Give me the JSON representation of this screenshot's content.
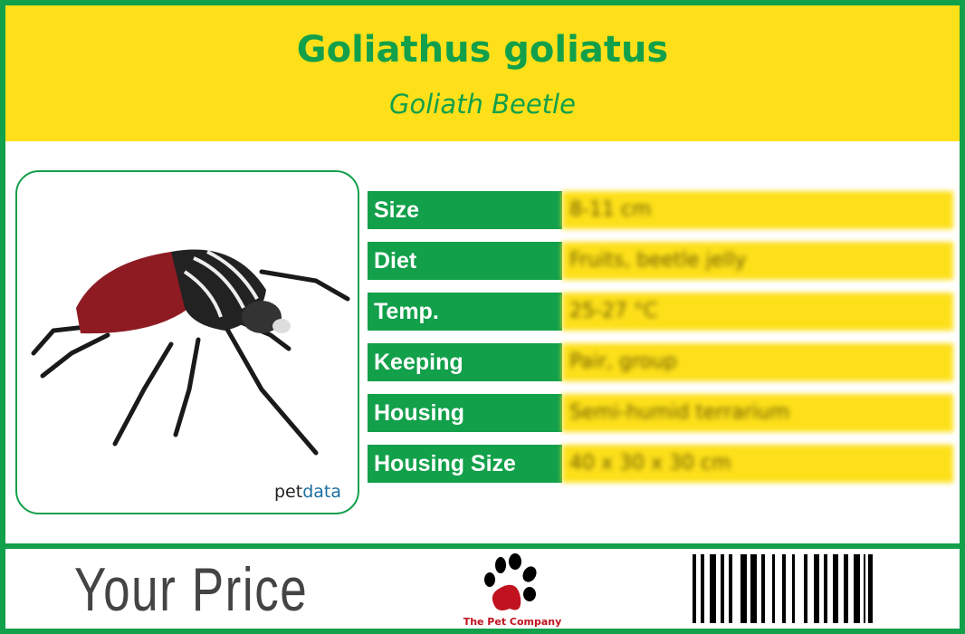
{
  "header": {
    "title": "Goliathus goliatus",
    "subtitle": "Goliath Beetle"
  },
  "photo": {
    "watermark_prefix": "pet",
    "watermark_suffix": "data"
  },
  "facts": [
    {
      "label": "Size",
      "value": "8-11 cm"
    },
    {
      "label": "Diet",
      "value": "Fruits, beetle jelly"
    },
    {
      "label": "Temp.",
      "value": "25-27 °C"
    },
    {
      "label": "Keeping",
      "value": "Pair, group"
    },
    {
      "label": "Housing",
      "value": "Semi-humid terrarium"
    },
    {
      "label": "Housing Size",
      "value": "40 x 30 x 30 cm"
    }
  ],
  "footer": {
    "price_label": "Your Price",
    "company": "The Pet Company"
  },
  "colors": {
    "green": "#12a04a",
    "yellow": "#fde01a",
    "logo_red": "#c0121f"
  }
}
